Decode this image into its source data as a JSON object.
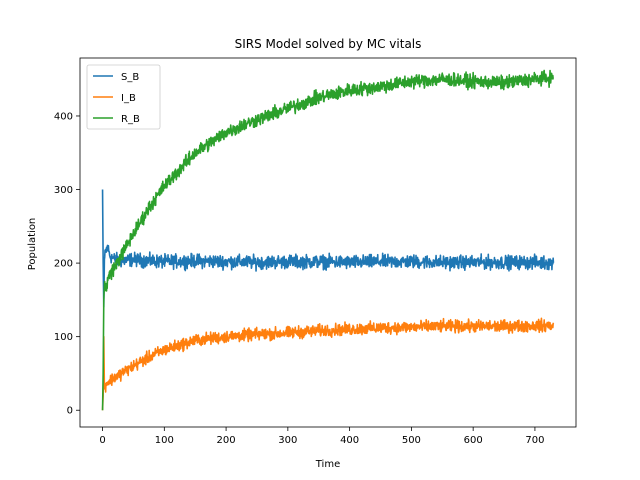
{
  "chart_data": {
    "type": "line",
    "title": "SIRS Model solved by MC vitals",
    "xlabel": "Time",
    "ylabel": "Population",
    "xlim": [
      -36.5,
      766.5
    ],
    "ylim": [
      -22.8,
      478.8
    ],
    "xticks": [
      0,
      100,
      200,
      300,
      400,
      500,
      600,
      700
    ],
    "yticks": [
      0,
      100,
      200,
      300,
      400
    ],
    "grid": false,
    "legend_position": "top-left",
    "series": [
      {
        "name": "S_B",
        "color": "#1f77b4",
        "x": [
          0,
          1,
          2,
          3,
          5,
          8,
          12,
          20,
          30,
          50,
          75,
          100,
          150,
          200,
          250,
          300,
          350,
          400,
          450,
          500,
          550,
          600,
          650,
          700,
          730
        ],
        "y": [
          300,
          200,
          140,
          205,
          215,
          222,
          210,
          205,
          203,
          205,
          203,
          202,
          203,
          202,
          201,
          202,
          202,
          201,
          202,
          202,
          201,
          201,
          201,
          201,
          200
        ]
      },
      {
        "name": "I_B",
        "color": "#ff7f0e",
        "x": [
          0,
          1,
          2,
          3,
          5,
          8,
          12,
          20,
          30,
          50,
          75,
          100,
          150,
          200,
          250,
          300,
          350,
          400,
          450,
          500,
          550,
          600,
          650,
          700,
          730
        ],
        "y": [
          0,
          20,
          100,
          30,
          35,
          38,
          40,
          45,
          50,
          60,
          72,
          82,
          95,
          100,
          103,
          105,
          108,
          110,
          112,
          113,
          114,
          114,
          114,
          115,
          115
        ]
      },
      {
        "name": "R_B",
        "color": "#2ca02c",
        "x": [
          0,
          1,
          2,
          3,
          5,
          8,
          12,
          20,
          30,
          50,
          75,
          100,
          150,
          200,
          250,
          300,
          350,
          400,
          450,
          500,
          550,
          600,
          650,
          700,
          730
        ],
        "y": [
          0,
          50,
          150,
          170,
          165,
          175,
          185,
          195,
          210,
          240,
          275,
          305,
          350,
          378,
          395,
          410,
          425,
          435,
          440,
          447,
          450,
          447,
          445,
          450,
          452
        ]
      }
    ]
  }
}
